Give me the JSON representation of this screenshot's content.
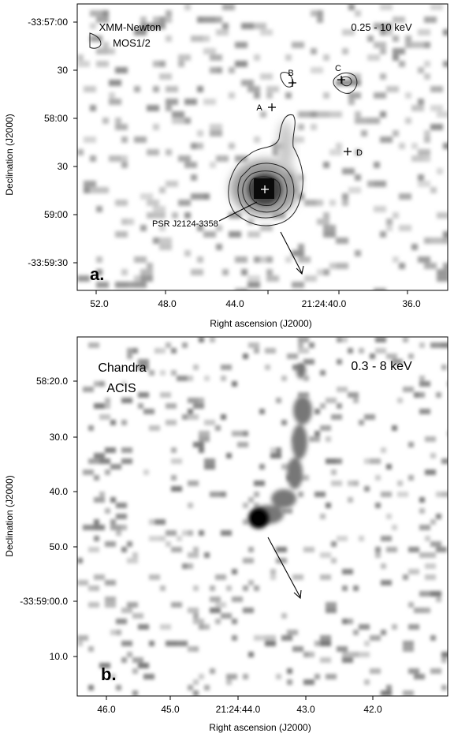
{
  "panel_a": {
    "instrument": "XMM-Newton",
    "detector": "MOS1/2",
    "energy": "0.25 - 10 keV",
    "panel_label": "a.",
    "xlabel": "Right ascension  (J2000)",
    "ylabel": "Declination (J2000)",
    "x_ticks": [
      "52.0",
      "48.0",
      "44.0",
      "21:24:40.0",
      "36.0"
    ],
    "y_ticks": [
      "-33:57:00",
      "30",
      "58:00",
      "30",
      "59:00",
      "-33:59:30"
    ],
    "sources": [
      "A",
      "B",
      "C",
      "D"
    ],
    "pulsar_label": "PSR J2124-3358"
  },
  "panel_b": {
    "instrument": "Chandra",
    "detector": "ACIS",
    "energy": "0.3 - 8 keV",
    "panel_label": "b.",
    "xlabel": "Right ascension (J2000)",
    "ylabel": "Declination (J2000)",
    "x_ticks": [
      "46.0",
      "45.0",
      "21:24:44.0",
      "43.0",
      "42.0"
    ],
    "y_ticks": [
      "58:20.0",
      "30.0",
      "40.0",
      "50.0",
      "-33:59:00.0",
      "10.0"
    ]
  }
}
